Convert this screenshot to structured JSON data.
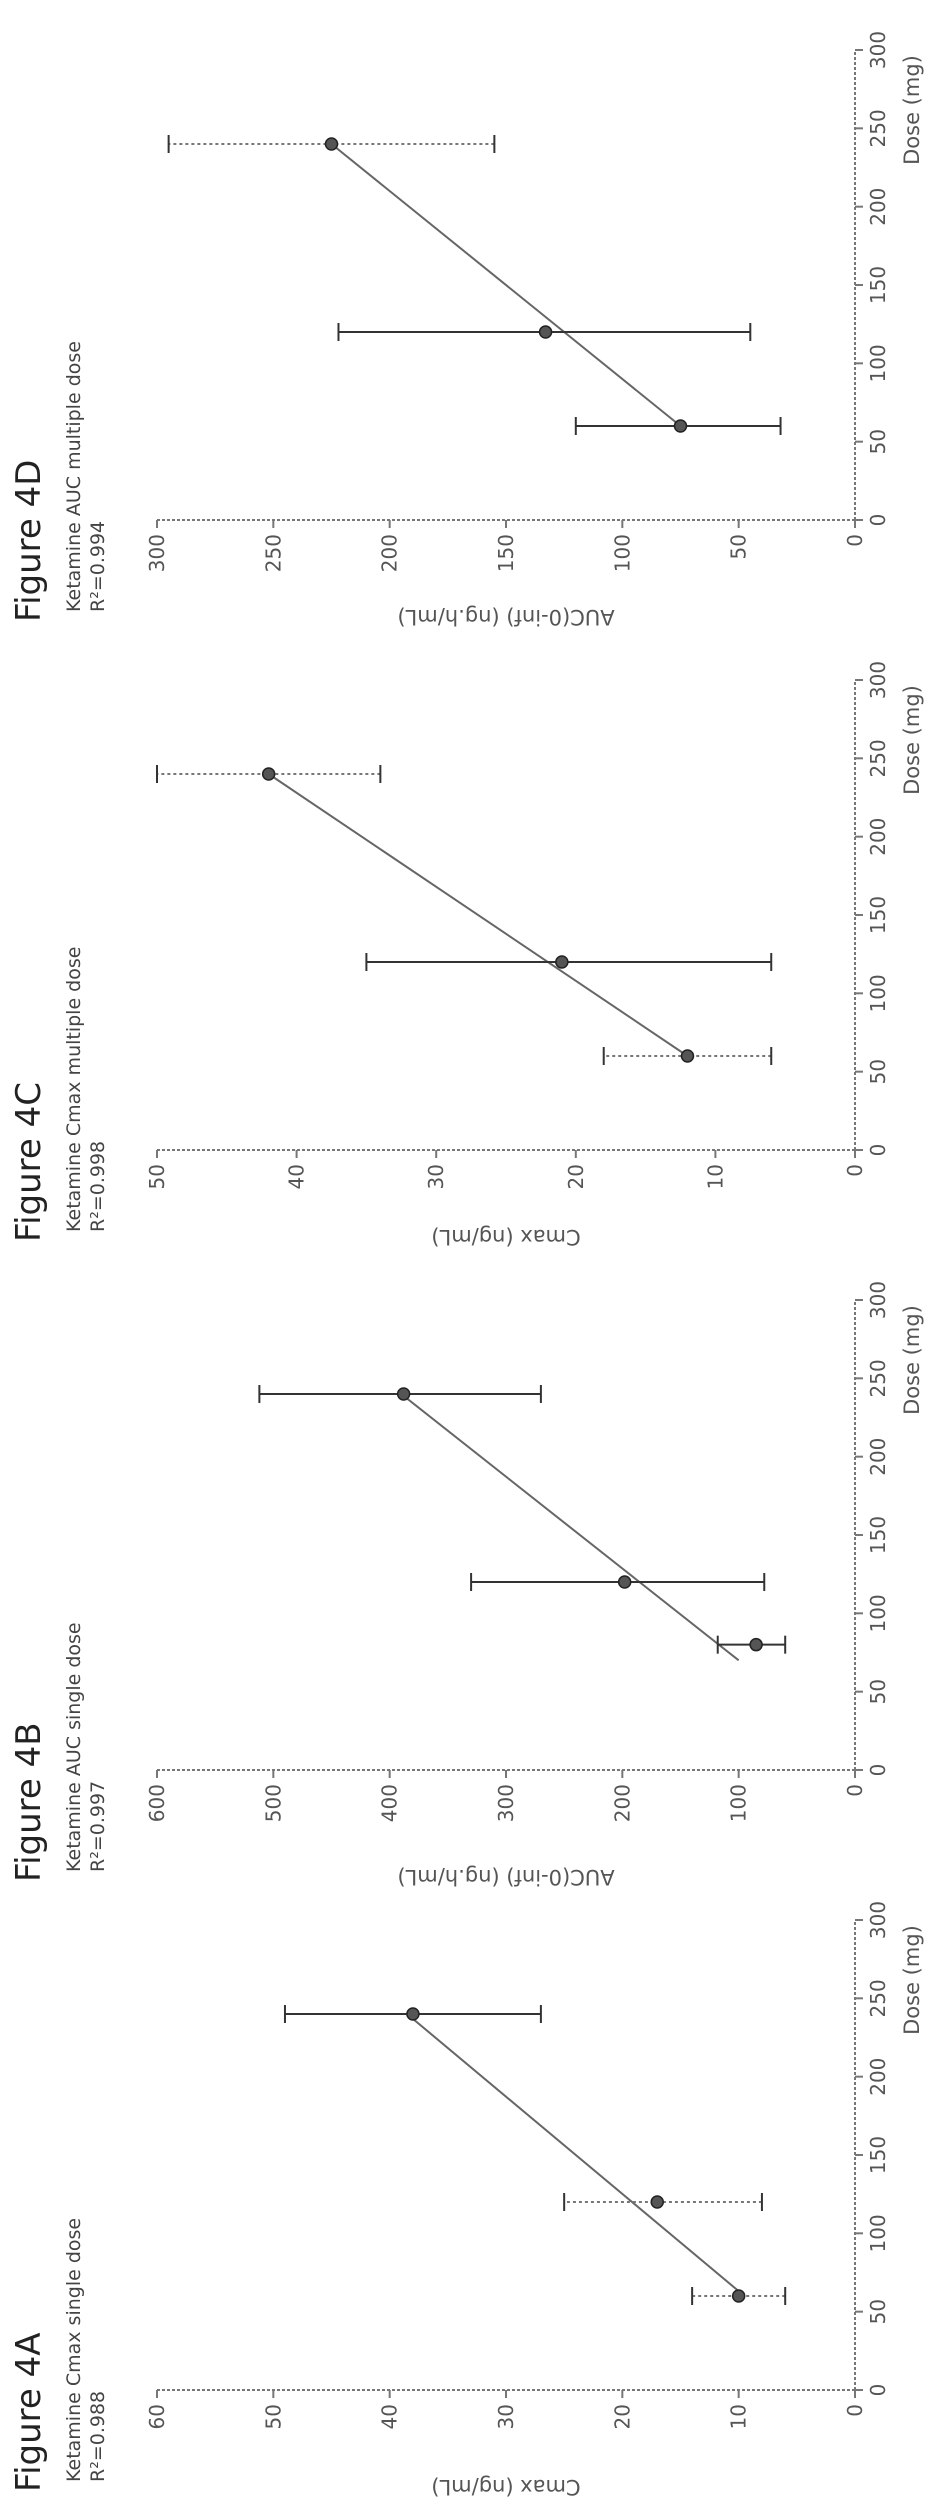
{
  "chart_data": [
    {
      "type": "scatter",
      "figure_label": "Figure 4A",
      "title": "Ketamine Cmax single dose",
      "r_squared": "R²=0.988",
      "xlabel": "Dose (mg)",
      "ylabel": "Cmax (ng/mL)",
      "xlim": [
        0,
        300
      ],
      "ylim": [
        0,
        60
      ],
      "xticks": [
        0,
        50,
        100,
        150,
        200,
        250,
        300
      ],
      "yticks": [
        0,
        10,
        20,
        30,
        40,
        50,
        60
      ],
      "points": [
        {
          "x": 60,
          "y": 10,
          "err_low": 6,
          "err_high": 14,
          "err_style": "dotted"
        },
        {
          "x": 120,
          "y": 17,
          "err_low": 8,
          "err_high": 25,
          "err_style": "dotted"
        },
        {
          "x": 240,
          "y": 38,
          "err_low": 27,
          "err_high": 49,
          "err_style": "solid"
        }
      ],
      "fit": {
        "x": [
          60,
          240
        ],
        "y": [
          9.5,
          38.5
        ]
      }
    },
    {
      "type": "scatter",
      "figure_label": "Figure 4B",
      "title": "Ketamine AUC single dose",
      "r_squared": "R²=0.997",
      "xlabel": "Dose (mg)",
      "ylabel": "AUC(0-inf) (ng.h/mL)",
      "xlim": [
        0,
        300
      ],
      "ylim": [
        0,
        600
      ],
      "xticks": [
        0,
        50,
        100,
        150,
        200,
        250,
        300
      ],
      "yticks": [
        0,
        100,
        200,
        300,
        400,
        500,
        600
      ],
      "points": [
        {
          "x": 80,
          "y": 85,
          "err_low": 60,
          "err_high": 118,
          "err_style": "solid"
        },
        {
          "x": 120,
          "y": 198,
          "err_low": 78,
          "err_high": 330,
          "err_style": "solid"
        },
        {
          "x": 240,
          "y": 388,
          "err_low": 270,
          "err_high": 512,
          "err_style": "solid"
        }
      ],
      "fit": {
        "x": [
          70,
          240
        ],
        "y": [
          100,
          390
        ]
      }
    },
    {
      "type": "scatter",
      "figure_label": "Figure 4C",
      "title": "Ketamine Cmax multiple dose",
      "r_squared": "R²=0.998",
      "xlabel": "Dose (mg)",
      "ylabel": "Cmax (ng/mL)",
      "xlim": [
        0,
        300
      ],
      "ylim": [
        0,
        50
      ],
      "xticks": [
        0,
        50,
        100,
        150,
        200,
        250,
        300
      ],
      "yticks": [
        0,
        10,
        20,
        30,
        40,
        50
      ],
      "points": [
        {
          "x": 60,
          "y": 12,
          "err_low": 6,
          "err_high": 18,
          "err_style": "dotted"
        },
        {
          "x": 120,
          "y": 21,
          "err_low": 6,
          "err_high": 35,
          "err_style": "solid"
        },
        {
          "x": 240,
          "y": 42,
          "err_low": 34,
          "err_high": 50,
          "err_style": "dotted"
        }
      ],
      "fit": {
        "x": [
          60,
          240
        ],
        "y": [
          12,
          42
        ]
      }
    },
    {
      "type": "scatter",
      "figure_label": "Figure 4D",
      "title": "Ketamine AUC multiple dose",
      "r_squared": "R²=0.994",
      "xlabel": "Dose (mg)",
      "ylabel": "AUC(0-inf) (ng.h/mL)",
      "xlim": [
        0,
        300
      ],
      "ylim": [
        0,
        300
      ],
      "xticks": [
        0,
        50,
        100,
        150,
        200,
        250,
        300
      ],
      "yticks": [
        0,
        50,
        100,
        150,
        200,
        250,
        300
      ],
      "points": [
        {
          "x": 60,
          "y": 75,
          "err_low": 32,
          "err_high": 120,
          "err_style": "solid"
        },
        {
          "x": 120,
          "y": 133,
          "err_low": 45,
          "err_high": 222,
          "err_style": "solid"
        },
        {
          "x": 240,
          "y": 225,
          "err_low": 155,
          "err_high": 295,
          "err_style": "dotted"
        }
      ],
      "fit": {
        "x": [
          60,
          240
        ],
        "y": [
          75,
          225
        ]
      }
    }
  ]
}
